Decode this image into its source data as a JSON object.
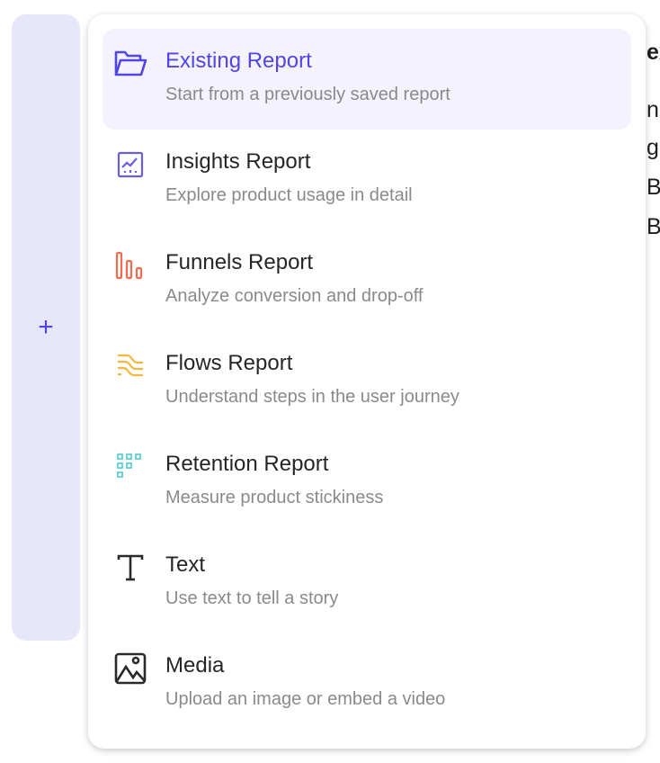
{
  "background": {
    "fragments": [
      "ex",
      "ne",
      "gE",
      "B",
      "B"
    ],
    "add_button_label": "+"
  },
  "menu": {
    "items": [
      {
        "icon": "folder-open-icon",
        "title": "Existing Report",
        "subtitle": "Start from a previously saved report",
        "active": true,
        "color": "#5046e5"
      },
      {
        "icon": "line-chart-icon",
        "title": "Insights Report",
        "subtitle": "Explore product usage in detail",
        "color": "#6b5ce7"
      },
      {
        "icon": "funnel-bars-icon",
        "title": "Funnels Report",
        "subtitle": "Analyze conversion and drop-off",
        "color": "#f26b4f"
      },
      {
        "icon": "flows-icon",
        "title": "Flows Report",
        "subtitle": "Understand steps in the user journey",
        "color": "#f5b83d"
      },
      {
        "icon": "retention-grid-icon",
        "title": "Retention Report",
        "subtitle": "Measure product stickiness",
        "color": "#5fcfcf"
      },
      {
        "icon": "text-icon",
        "title": "Text",
        "subtitle": "Use text to tell a story",
        "color": "#2a2a2a"
      },
      {
        "icon": "image-icon",
        "title": "Media",
        "subtitle": "Upload an image or embed a video",
        "color": "#2a2a2a"
      }
    ]
  }
}
